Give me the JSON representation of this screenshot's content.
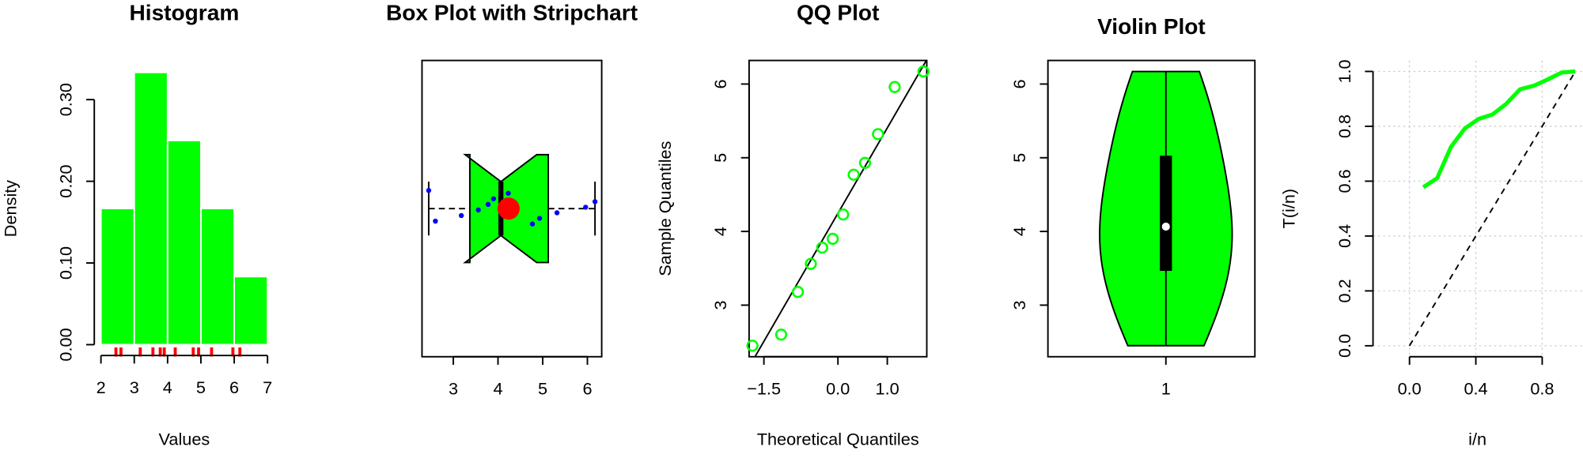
{
  "chart_data": [
    {
      "type": "histogram",
      "title": "Histogram",
      "x_label": "Values",
      "y_label": "Density",
      "bins": [
        2,
        3,
        4,
        5,
        6,
        7
      ],
      "values": [
        0.1667,
        0.3333,
        0.25,
        0.1667,
        0.0833
      ],
      "rug": [
        2.45,
        2.6,
        3.18,
        3.56,
        3.78,
        3.9,
        4.23,
        4.77,
        4.93,
        5.32,
        5.96,
        6.17
      ],
      "color": "#00ff00",
      "rug_color": "#ff0000",
      "xlim": [
        1.8,
        7.2
      ],
      "ylim": [
        -0.0133,
        0.3467
      ],
      "xticks": [
        2,
        3,
        4,
        5,
        6,
        7
      ],
      "yticks": [
        {
          "value": 0,
          "label": "0.00"
        },
        {
          "value": 0.1,
          "label": "0.10"
        },
        {
          "value": 0.2,
          "label": "0.20"
        },
        {
          "value": 0.3,
          "label": "0.30"
        }
      ]
    },
    {
      "type": "box",
      "title": "Box Plot with Stripchart",
      "values": [
        2.45,
        2.6,
        3.18,
        3.56,
        3.78,
        3.9,
        4.23,
        4.77,
        4.93,
        5.32,
        5.96,
        6.17
      ],
      "color": "#00ff00",
      "point_color": "#0000ff",
      "mean_color": "#ff0000",
      "notch": true,
      "xlim": [
        2.3,
        6.32
      ],
      "xticks": [
        3,
        4,
        5,
        6
      ]
    },
    {
      "type": "qq",
      "title": "QQ Plot",
      "x_label": "Theoretical Quantiles",
      "y_label": "Sample Quantiles",
      "x": [
        -1.732,
        -1.15,
        -0.812,
        -0.549,
        -0.319,
        -0.105,
        0.105,
        0.319,
        0.549,
        0.812,
        1.15,
        1.732
      ],
      "y": [
        2.45,
        2.6,
        3.18,
        3.56,
        3.78,
        3.9,
        4.23,
        4.77,
        4.93,
        5.32,
        5.96,
        6.17
      ],
      "color": "#00ff00",
      "xlim": [
        -1.8,
        1.8
      ],
      "ylim": [
        2.3,
        6.32
      ],
      "xticks": [
        {
          "value": -1.5,
          "label": "−1.5"
        },
        {
          "value": 0,
          "label": "0.0"
        },
        {
          "value": 1,
          "label": "1.0"
        }
      ],
      "yticks": [
        3,
        4,
        5,
        6
      ]
    },
    {
      "type": "violin",
      "title": "Violin Plot",
      "values": [
        2.45,
        2.6,
        3.18,
        3.56,
        3.78,
        3.9,
        4.23,
        4.77,
        4.93,
        5.32,
        5.96,
        6.17
      ],
      "color": "#00ff00",
      "xlim": [
        0.43,
        1.43
      ],
      "ylim": [
        2.3,
        6.32
      ],
      "xticks": [
        1
      ],
      "yticks": [
        3,
        4,
        5,
        6
      ]
    },
    {
      "type": "line",
      "x_label": "i/n",
      "y_label": "T(i/n)",
      "x": [
        0.0833,
        0.1667,
        0.25,
        0.3333,
        0.4167,
        0.5,
        0.5833,
        0.6667,
        0.75,
        0.8333,
        0.9167,
        1.0
      ],
      "y": [
        0.578,
        0.611,
        0.725,
        0.792,
        0.827,
        0.843,
        0.882,
        0.935,
        0.948,
        0.971,
        0.996,
        1.0
      ],
      "color": "#00ff00",
      "grid": true,
      "xlim": [
        -0.22,
        1.04
      ],
      "ylim": [
        -0.04,
        1.04
      ],
      "xticks": [
        {
          "value": 0,
          "label": "0.0"
        },
        0.4,
        0.8
      ],
      "yticks": [
        {
          "value": 0,
          "label": "0.0"
        },
        0.2,
        0.4,
        0.6,
        0.8,
        {
          "value": 1,
          "label": "1.0"
        }
      ]
    }
  ]
}
